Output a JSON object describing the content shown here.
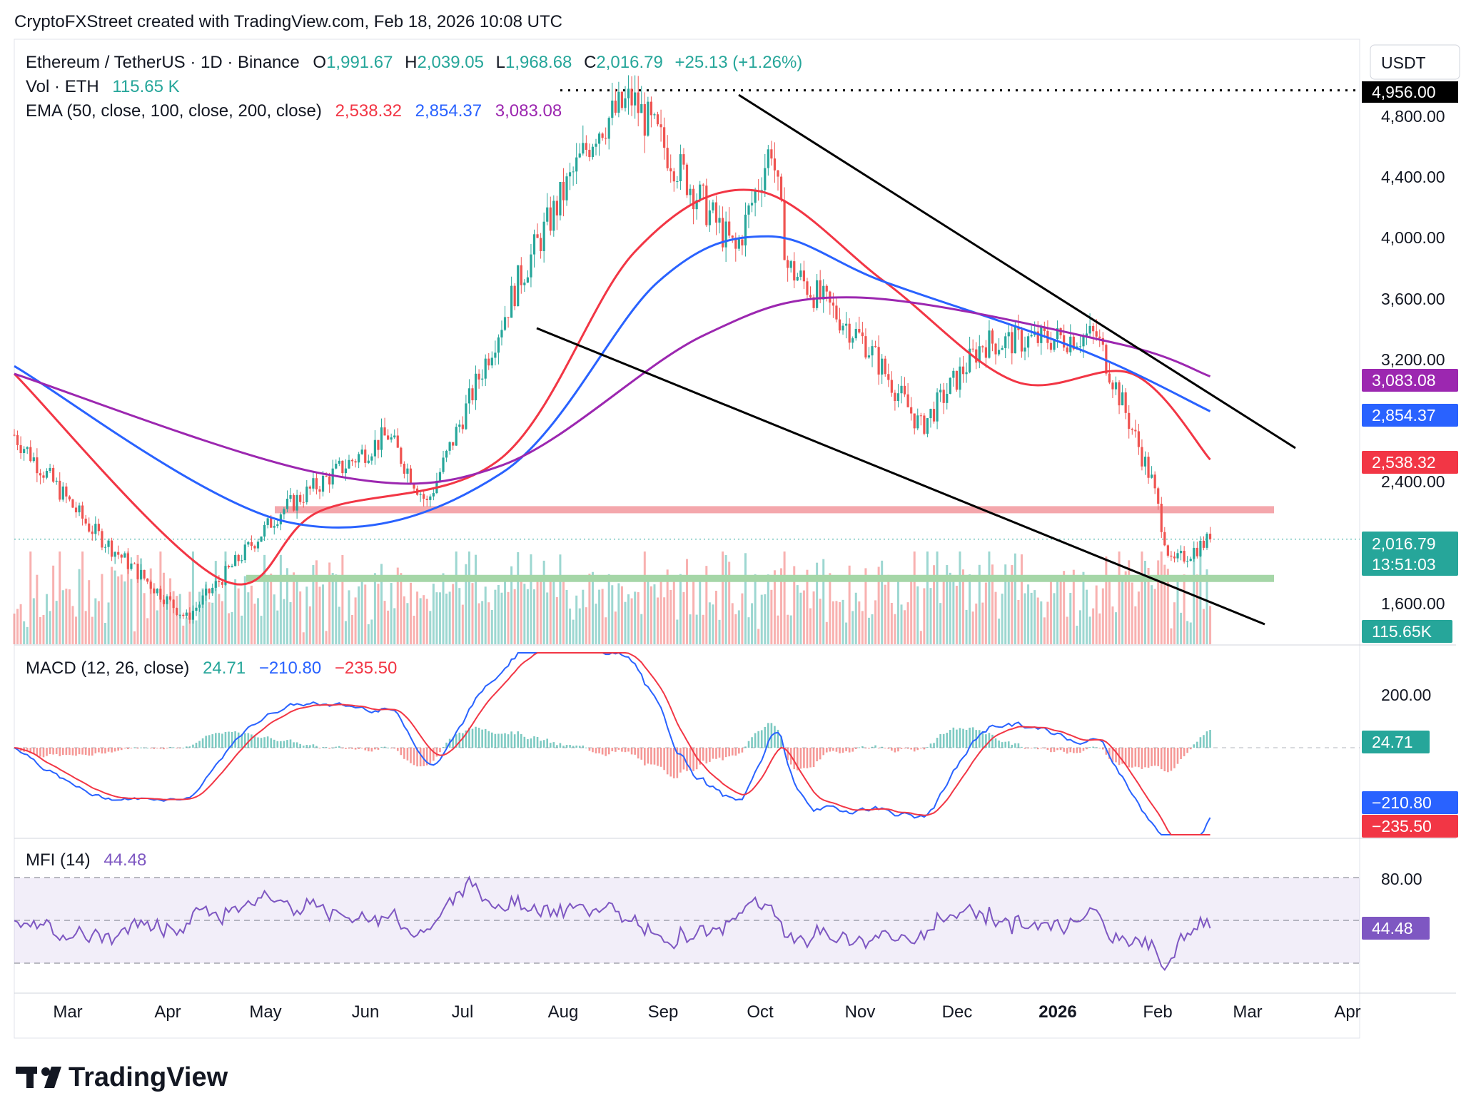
{
  "header": {
    "credit": "CryptoFXStreet created with TradingView.com, Feb 18, 2026 10:08 UTC"
  },
  "symbol": {
    "title": "Ethereum / TetherUS · 1D · Binance",
    "open_label": "O",
    "open": "1,991.67",
    "high_label": "H",
    "high": "2,039.05",
    "low_label": "L",
    "low": "1,968.68",
    "close_label": "C",
    "close": "2,016.79",
    "change": "+25.13 (+1.26%)"
  },
  "volume": {
    "label": "Vol · ETH",
    "value": "115.65 K"
  },
  "ema": {
    "label": "EMA (50, close, 100, close, 200, close)",
    "ema50": "2,538.32",
    "ema100": "2,854.37",
    "ema200": "3,083.08"
  },
  "macd": {
    "label": "MACD (12, 26, close)",
    "hist": "24.71",
    "macd": "−210.80",
    "signal": "−235.50"
  },
  "mfi": {
    "label": "MFI (14)",
    "value": "44.48"
  },
  "axis": {
    "currency": "USDT",
    "price_ticks": [
      "4,800.00",
      "4,400.00",
      "4,000.00",
      "3,600.00",
      "3,200.00",
      "2,400.00",
      "1,600.00"
    ],
    "macd_ticks": [
      "200.00"
    ],
    "mfi_ticks": [
      "80.00"
    ],
    "time_labels": [
      "Mar",
      "Apr",
      "May",
      "Jun",
      "Jul",
      "Aug",
      "Sep",
      "Oct",
      "Nov",
      "Dec",
      "2026",
      "Feb",
      "Mar",
      "Apr"
    ]
  },
  "badges": {
    "high_line": "4,956.00",
    "ema200": "3,083.08",
    "ema100": "2,854.37",
    "ema50": "2,538.32",
    "last_price": "2,016.79",
    "countdown": "13:51:03",
    "volume": "115.65K",
    "macd_hist": "24.71",
    "macd": "−210.80",
    "signal": "−235.50",
    "mfi": "44.48"
  },
  "colors": {
    "up": "#26a69a",
    "down": "#ef5350",
    "ema50": "#f23645",
    "ema100": "#2962ff",
    "ema200": "#9c27b0",
    "mfi": "#7e57c2",
    "resistance_zone": "#f4a7ac",
    "support_zone": "#a5d6a7"
  },
  "footer": {
    "logo_text": "TradingView"
  },
  "chart_data": {
    "type": "candlestick",
    "symbol": "ETH/USDT",
    "interval": "1D",
    "x_range": [
      "2025-02-15",
      "2026-04-05"
    ],
    "price_range": [
      1400,
      5000
    ],
    "key_points": [
      {
        "date": "2025-02-15",
        "close": 2700
      },
      {
        "date": "2025-03-10",
        "close": 2100
      },
      {
        "date": "2025-04-09",
        "close": 1500
      },
      {
        "date": "2025-05-08",
        "close": 2200
      },
      {
        "date": "2025-06-10",
        "close": 2700
      },
      {
        "date": "2025-06-22",
        "close": 2250
      },
      {
        "date": "2025-07-20",
        "close": 3700
      },
      {
        "date": "2025-08-13",
        "close": 4700
      },
      {
        "date": "2025-08-24",
        "close": 4900
      },
      {
        "date": "2025-09-25",
        "close": 3900
      },
      {
        "date": "2025-10-06",
        "close": 4600
      },
      {
        "date": "2025-10-11",
        "close": 3800
      },
      {
        "date": "2025-11-04",
        "close": 3300
      },
      {
        "date": "2025-11-21",
        "close": 2750
      },
      {
        "date": "2025-12-10",
        "close": 3300
      },
      {
        "date": "2026-01-14",
        "close": 3350
      },
      {
        "date": "2026-01-31",
        "close": 2400
      },
      {
        "date": "2026-02-06",
        "close": 1850
      },
      {
        "date": "2026-02-18",
        "close": 2016.79
      }
    ],
    "ema_key_points": {
      "ema50": [
        {
          "date": "2025-02-15",
          "v": 3100
        },
        {
          "date": "2025-04-20",
          "v": 1750
        },
        {
          "date": "2025-05-20",
          "v": 2200
        },
        {
          "date": "2025-07-15",
          "v": 2550
        },
        {
          "date": "2025-08-25",
          "v": 3900
        },
        {
          "date": "2025-10-01",
          "v": 4300
        },
        {
          "date": "2025-11-10",
          "v": 3700
        },
        {
          "date": "2025-12-20",
          "v": 3050
        },
        {
          "date": "2026-01-25",
          "v": 3100
        },
        {
          "date": "2026-02-18",
          "v": 2538.32
        }
      ],
      "ema100": [
        {
          "date": "2025-02-15",
          "v": 3150
        },
        {
          "date": "2025-05-10",
          "v": 2130
        },
        {
          "date": "2025-07-15",
          "v": 2450
        },
        {
          "date": "2025-09-01",
          "v": 3700
        },
        {
          "date": "2025-10-05",
          "v": 4000
        },
        {
          "date": "2025-11-10",
          "v": 3700
        },
        {
          "date": "2026-01-10",
          "v": 3250
        },
        {
          "date": "2026-02-18",
          "v": 2854.37
        }
      ],
      "ema200": [
        {
          "date": "2025-02-15",
          "v": 3100
        },
        {
          "date": "2025-05-20",
          "v": 2450
        },
        {
          "date": "2025-07-15",
          "v": 2500
        },
        {
          "date": "2025-09-15",
          "v": 3350
        },
        {
          "date": "2025-11-01",
          "v": 3600
        },
        {
          "date": "2026-01-20",
          "v": 3300
        },
        {
          "date": "2026-02-18",
          "v": 3083.08
        }
      ]
    },
    "horizontal_levels": {
      "high": 4956,
      "resistance_zone": 2210,
      "support_zone": 1760,
      "last_price": 2016.79
    },
    "macd_range": [
      -300,
      300
    ],
    "mfi_range": [
      0,
      100
    ],
    "mfi_bands": [
      20,
      50,
      80
    ]
  }
}
